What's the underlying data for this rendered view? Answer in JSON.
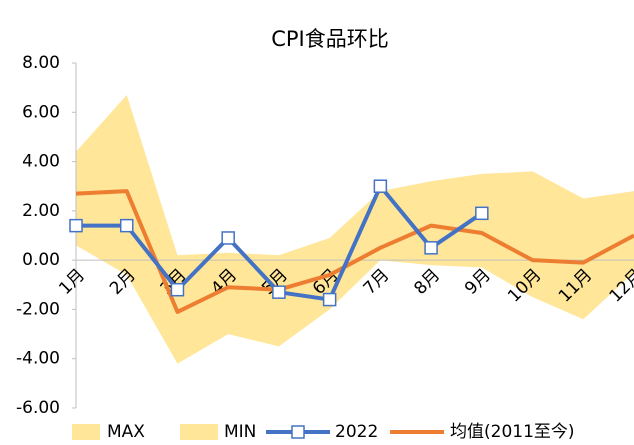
{
  "chart_data": {
    "type": "line",
    "title": "CPI食品环比",
    "categories": [
      "1月",
      "2月",
      "3月",
      "4月",
      "5月",
      "6月",
      "7月",
      "8月",
      "9月",
      "10月",
      "11月",
      "12月"
    ],
    "series": [
      {
        "name": "MAX",
        "color": "#ffe699",
        "values": [
          4.4,
          6.7,
          0.2,
          0.3,
          0.2,
          0.9,
          2.8,
          3.2,
          3.5,
          3.6,
          2.5,
          2.8
        ]
      },
      {
        "name": "MIN",
        "color": "#ffe699",
        "values": [
          0.6,
          -0.6,
          -4.2,
          -3.0,
          -3.5,
          -2.0,
          0.0,
          -0.2,
          -0.3,
          -1.5,
          -2.4,
          -0.5
        ]
      },
      {
        "name": "2022",
        "color": "#4472c4",
        "values": [
          1.4,
          1.4,
          -1.2,
          0.9,
          -1.3,
          -1.6,
          3.0,
          0.5,
          1.9,
          null,
          null,
          null
        ]
      },
      {
        "name": "均值(2011至今)",
        "color": "#ed7d31",
        "values": [
          2.7,
          2.8,
          -2.1,
          -1.1,
          -1.2,
          -0.6,
          0.5,
          1.4,
          1.1,
          0.0,
          -0.1,
          1.0
        ]
      }
    ],
    "ylim": [
      -6,
      8
    ],
    "yticks": [
      {
        "value": 8,
        "label": "8.00"
      },
      {
        "value": 6,
        "label": "6.00"
      },
      {
        "value": 4,
        "label": "4.00"
      },
      {
        "value": 2,
        "label": "2.00"
      },
      {
        "value": 0,
        "label": "0.00"
      },
      {
        "value": -2,
        "label": "-2.00"
      },
      {
        "value": -4,
        "label": "-4.00"
      },
      {
        "value": -6,
        "label": "-6.00"
      }
    ],
    "grid": false
  }
}
